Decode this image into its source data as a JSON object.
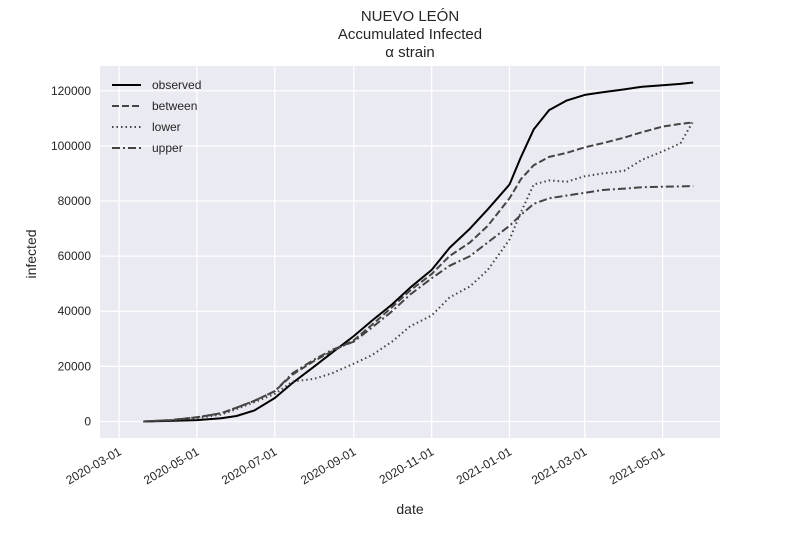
{
  "chart_data": {
    "type": "line",
    "title_lines": [
      "NUEVO LEÓN",
      "Accumulated Infected",
      "α strain"
    ],
    "xlabel": "date",
    "ylabel": "infected",
    "x_ticks": [
      "2020-03-01",
      "2020-05-01",
      "2020-07-01",
      "2020-09-01",
      "2020-11-01",
      "2021-01-01",
      "2021-03-01",
      "2021-05-01"
    ],
    "y_ticks": [
      0,
      20000,
      40000,
      60000,
      80000,
      100000,
      120000
    ],
    "xlim": [
      "2020-02-15",
      "2021-06-15"
    ],
    "ylim": [
      -6000,
      129000
    ],
    "grid": true,
    "legend_position": "top-left",
    "colors": {
      "background": "#eaeaf2",
      "grid": "#ffffff",
      "observed": "#000000",
      "models": "#444444"
    },
    "series": [
      {
        "name": "observed",
        "style": "solid",
        "x": [
          "2020-03-20",
          "2020-04-10",
          "2020-05-01",
          "2020-05-20",
          "2020-06-01",
          "2020-06-15",
          "2020-07-01",
          "2020-07-15",
          "2020-08-01",
          "2020-08-15",
          "2020-09-01",
          "2020-09-15",
          "2020-10-01",
          "2020-10-15",
          "2020-11-01",
          "2020-11-15",
          "2020-12-01",
          "2020-12-15",
          "2021-01-01",
          "2021-01-10",
          "2021-01-20",
          "2021-02-01",
          "2021-02-15",
          "2021-03-01",
          "2021-03-15",
          "2021-04-01",
          "2021-04-15",
          "2021-05-01",
          "2021-05-15",
          "2021-05-25"
        ],
        "values": [
          0,
          200,
          500,
          1200,
          2000,
          4000,
          8500,
          14000,
          20000,
          25000,
          31000,
          36500,
          42500,
          48500,
          55000,
          63000,
          70000,
          77000,
          86000,
          96000,
          106000,
          113000,
          116500,
          118500,
          119500,
          120500,
          121500,
          122000,
          122500,
          123000
        ]
      },
      {
        "name": "between",
        "style": "dashed",
        "x": [
          "2020-03-20",
          "2020-04-10",
          "2020-05-01",
          "2020-05-20",
          "2020-06-01",
          "2020-06-15",
          "2020-07-01",
          "2020-07-15",
          "2020-08-01",
          "2020-08-15",
          "2020-09-01",
          "2020-09-15",
          "2020-10-01",
          "2020-10-15",
          "2020-11-01",
          "2020-11-15",
          "2020-12-01",
          "2020-12-15",
          "2021-01-01",
          "2021-01-10",
          "2021-01-20",
          "2021-02-01",
          "2021-02-15",
          "2021-03-01",
          "2021-03-15",
          "2021-04-01",
          "2021-04-15",
          "2021-05-01",
          "2021-05-15",
          "2021-05-25"
        ],
        "values": [
          0,
          500,
          1500,
          3000,
          5000,
          7500,
          11000,
          17000,
          22000,
          25500,
          29500,
          35000,
          41500,
          47500,
          53500,
          60000,
          65000,
          71000,
          81000,
          88000,
          93000,
          96000,
          97500,
          99500,
          101000,
          103000,
          105000,
          107000,
          108000,
          108500
        ]
      },
      {
        "name": "lower",
        "style": "dotted",
        "x": [
          "2020-03-20",
          "2020-04-10",
          "2020-05-01",
          "2020-05-20",
          "2020-06-01",
          "2020-06-15",
          "2020-07-01",
          "2020-07-15",
          "2020-08-01",
          "2020-08-15",
          "2020-09-01",
          "2020-09-15",
          "2020-10-01",
          "2020-10-15",
          "2020-11-01",
          "2020-11-15",
          "2020-12-01",
          "2020-12-15",
          "2021-01-01",
          "2021-01-10",
          "2021-01-20",
          "2021-02-01",
          "2021-02-15",
          "2021-03-01",
          "2021-03-15",
          "2021-04-01",
          "2021-04-15",
          "2021-05-01",
          "2021-05-15",
          "2021-05-25"
        ],
        "values": [
          0,
          400,
          1200,
          2500,
          4500,
          7000,
          10000,
          14500,
          15500,
          17500,
          21000,
          24000,
          29000,
          34500,
          38500,
          45000,
          49000,
          55000,
          66000,
          76000,
          86000,
          87500,
          87000,
          89000,
          90000,
          91000,
          95000,
          98000,
          101000,
          109000
        ]
      },
      {
        "name": "upper",
        "style": "dashdot",
        "x": [
          "2020-03-20",
          "2020-04-10",
          "2020-05-01",
          "2020-05-20",
          "2020-06-01",
          "2020-06-15",
          "2020-07-01",
          "2020-07-15",
          "2020-08-01",
          "2020-08-15",
          "2020-09-01",
          "2020-09-15",
          "2020-10-01",
          "2020-10-15",
          "2020-11-01",
          "2020-11-15",
          "2020-12-01",
          "2020-12-15",
          "2021-01-01",
          "2021-01-10",
          "2021-01-20",
          "2021-02-01",
          "2021-02-15",
          "2021-03-01",
          "2021-03-15",
          "2021-04-01",
          "2021-04-15",
          "2021-05-01",
          "2021-05-15",
          "2021-05-25"
        ],
        "values": [
          0,
          500,
          1500,
          3000,
          5000,
          7500,
          11000,
          17500,
          22500,
          26000,
          29000,
          34000,
          40000,
          46000,
          52000,
          56500,
          60000,
          65000,
          71000,
          75000,
          79000,
          81000,
          82000,
          83000,
          84000,
          84500,
          85000,
          85200,
          85300,
          85400
        ]
      }
    ]
  }
}
